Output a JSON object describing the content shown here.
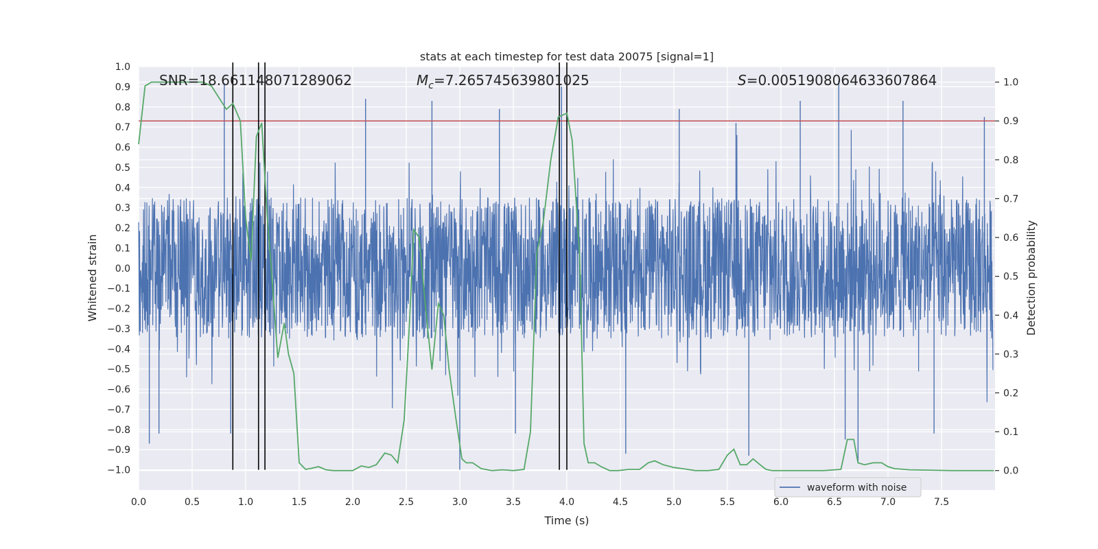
{
  "chart_data": {
    "type": "line",
    "title": "stats at each timestep for test data 20075 [signal=1]",
    "xlabel": "Time (s)",
    "ylabel": "Whitened strain",
    "y2label": "Detection probability",
    "xlim": [
      0.0,
      8.0
    ],
    "ylim": [
      -1.1,
      1.0
    ],
    "y2lim": [
      -0.05,
      1.04
    ],
    "xticks": [
      "0.0",
      "0.5",
      "1.0",
      "1.5",
      "2.0",
      "2.5",
      "3.0",
      "3.5",
      "4.0",
      "4.5",
      "5.0",
      "5.5",
      "6.0",
      "6.5",
      "7.0",
      "7.5"
    ],
    "yticks": [
      "1.0",
      "0.9",
      "0.8",
      "0.7",
      "0.6",
      "0.5",
      "0.4",
      "0.3",
      "0.2",
      "0.1",
      "0.0",
      "−0.1",
      "−0.2",
      "−0.3",
      "−0.4",
      "−0.5",
      "−0.6",
      "−0.7",
      "−0.8",
      "−0.9",
      "−1.0"
    ],
    "y2ticks": [
      "1.0",
      "0.9",
      "0.8",
      "0.7",
      "0.6",
      "0.5",
      "0.4",
      "0.3",
      "0.2",
      "0.1",
      "0.0"
    ],
    "legend": {
      "position": "bottom-center-right",
      "entries": [
        "waveform with noise"
      ]
    },
    "annotations": {
      "snr": "SNR=18.661148071289062",
      "mc_symbol": "M",
      "mc_sub": "c",
      "mc_value": "=7.265745639801025",
      "s_symbol": "S",
      "s_value": "=0.0051908064633607864"
    },
    "threshold": 0.9,
    "vertical_lines": [
      0.88,
      1.12,
      1.18,
      3.93,
      4.0
    ],
    "series": [
      {
        "name": "waveform with noise",
        "color": "#4c72b0",
        "note": "dense noisy strain, typical envelope about ±0.35",
        "base_amplitude": 0.35,
        "spikes": [
          {
            "t": 0.1,
            "v": -0.87
          },
          {
            "t": 0.19,
            "v": -0.82
          },
          {
            "t": 0.8,
            "v": 0.92
          },
          {
            "t": 0.86,
            "v": -0.82
          },
          {
            "t": 2.12,
            "v": 0.84
          },
          {
            "t": 2.74,
            "v": 0.83
          },
          {
            "t": 3.0,
            "v": -1.0
          },
          {
            "t": 3.37,
            "v": 0.79
          },
          {
            "t": 3.52,
            "v": -0.82
          },
          {
            "t": 3.95,
            "v": 0.9
          },
          {
            "t": 4.55,
            "v": -0.92
          },
          {
            "t": 5.05,
            "v": 0.79
          },
          {
            "t": 5.58,
            "v": 0.72
          },
          {
            "t": 5.7,
            "v": -0.93
          },
          {
            "t": 6.18,
            "v": 0.83
          },
          {
            "t": 6.54,
            "v": 0.93
          },
          {
            "t": 6.6,
            "v": -0.85
          },
          {
            "t": 6.72,
            "v": -0.96
          },
          {
            "t": 7.14,
            "v": 0.83
          },
          {
            "t": 7.43,
            "v": -0.82
          },
          {
            "t": 7.9,
            "v": 0.75
          }
        ]
      },
      {
        "name": "detection probability",
        "color": "#55a868",
        "axis": "right",
        "x": [
          0.0,
          0.06,
          0.12,
          0.2,
          0.3,
          0.4,
          0.5,
          0.6,
          0.68,
          0.75,
          0.82,
          0.88,
          0.95,
          1.0,
          1.05,
          1.1,
          1.15,
          1.2,
          1.25,
          1.3,
          1.36,
          1.4,
          1.45,
          1.5,
          1.56,
          1.62,
          1.68,
          1.75,
          1.82,
          1.9,
          2.0,
          2.08,
          2.15,
          2.22,
          2.3,
          2.36,
          2.42,
          2.48,
          2.53,
          2.57,
          2.62,
          2.68,
          2.74,
          2.8,
          2.85,
          2.9,
          2.96,
          3.02,
          3.06,
          3.12,
          3.2,
          3.3,
          3.4,
          3.5,
          3.6,
          3.66,
          3.72,
          3.78,
          3.85,
          3.92,
          3.96,
          4.0,
          4.05,
          4.12,
          4.16,
          4.2,
          4.26,
          4.32,
          4.4,
          4.48,
          4.58,
          4.68,
          4.76,
          4.82,
          4.9,
          5.0,
          5.1,
          5.2,
          5.32,
          5.42,
          5.5,
          5.56,
          5.62,
          5.68,
          5.74,
          5.8,
          5.86,
          5.92,
          6.0,
          6.2,
          6.4,
          6.56,
          6.62,
          6.68,
          6.72,
          6.78,
          6.86,
          6.94,
          7.0,
          7.06,
          7.2,
          7.4,
          7.6,
          7.8,
          7.99
        ],
        "values": [
          0.84,
          0.99,
          1.0,
          1.0,
          1.0,
          1.0,
          1.0,
          1.0,
          0.99,
          0.96,
          0.93,
          0.945,
          0.9,
          0.65,
          0.54,
          0.86,
          0.895,
          0.66,
          0.48,
          0.29,
          0.38,
          0.3,
          0.25,
          0.02,
          0.003,
          0.006,
          0.01,
          0.002,
          0.0,
          0.0,
          0.0,
          0.012,
          0.008,
          0.015,
          0.045,
          0.04,
          0.02,
          0.13,
          0.38,
          0.62,
          0.6,
          0.42,
          0.26,
          0.43,
          0.4,
          0.26,
          0.14,
          0.03,
          0.02,
          0.02,
          0.005,
          0.0,
          0.002,
          0.0,
          0.003,
          0.1,
          0.56,
          0.64,
          0.8,
          0.91,
          0.915,
          0.92,
          0.85,
          0.55,
          0.07,
          0.02,
          0.02,
          0.01,
          0.0,
          0.0,
          0.003,
          0.003,
          0.02,
          0.025,
          0.015,
          0.008,
          0.004,
          0.0,
          0.0,
          0.003,
          0.04,
          0.055,
          0.015,
          0.015,
          0.03,
          0.016,
          0.003,
          0.0,
          0.0,
          0.0,
          0.0,
          0.003,
          0.08,
          0.08,
          0.02,
          0.015,
          0.02,
          0.02,
          0.01,
          0.005,
          0.002,
          0.001,
          0.0,
          0.0,
          0.0
        ]
      }
    ],
    "colors": {
      "background": "#eaeaf2",
      "grid": "#ffffff",
      "threshold": "#c44e52",
      "event_lines": "#000000"
    }
  }
}
